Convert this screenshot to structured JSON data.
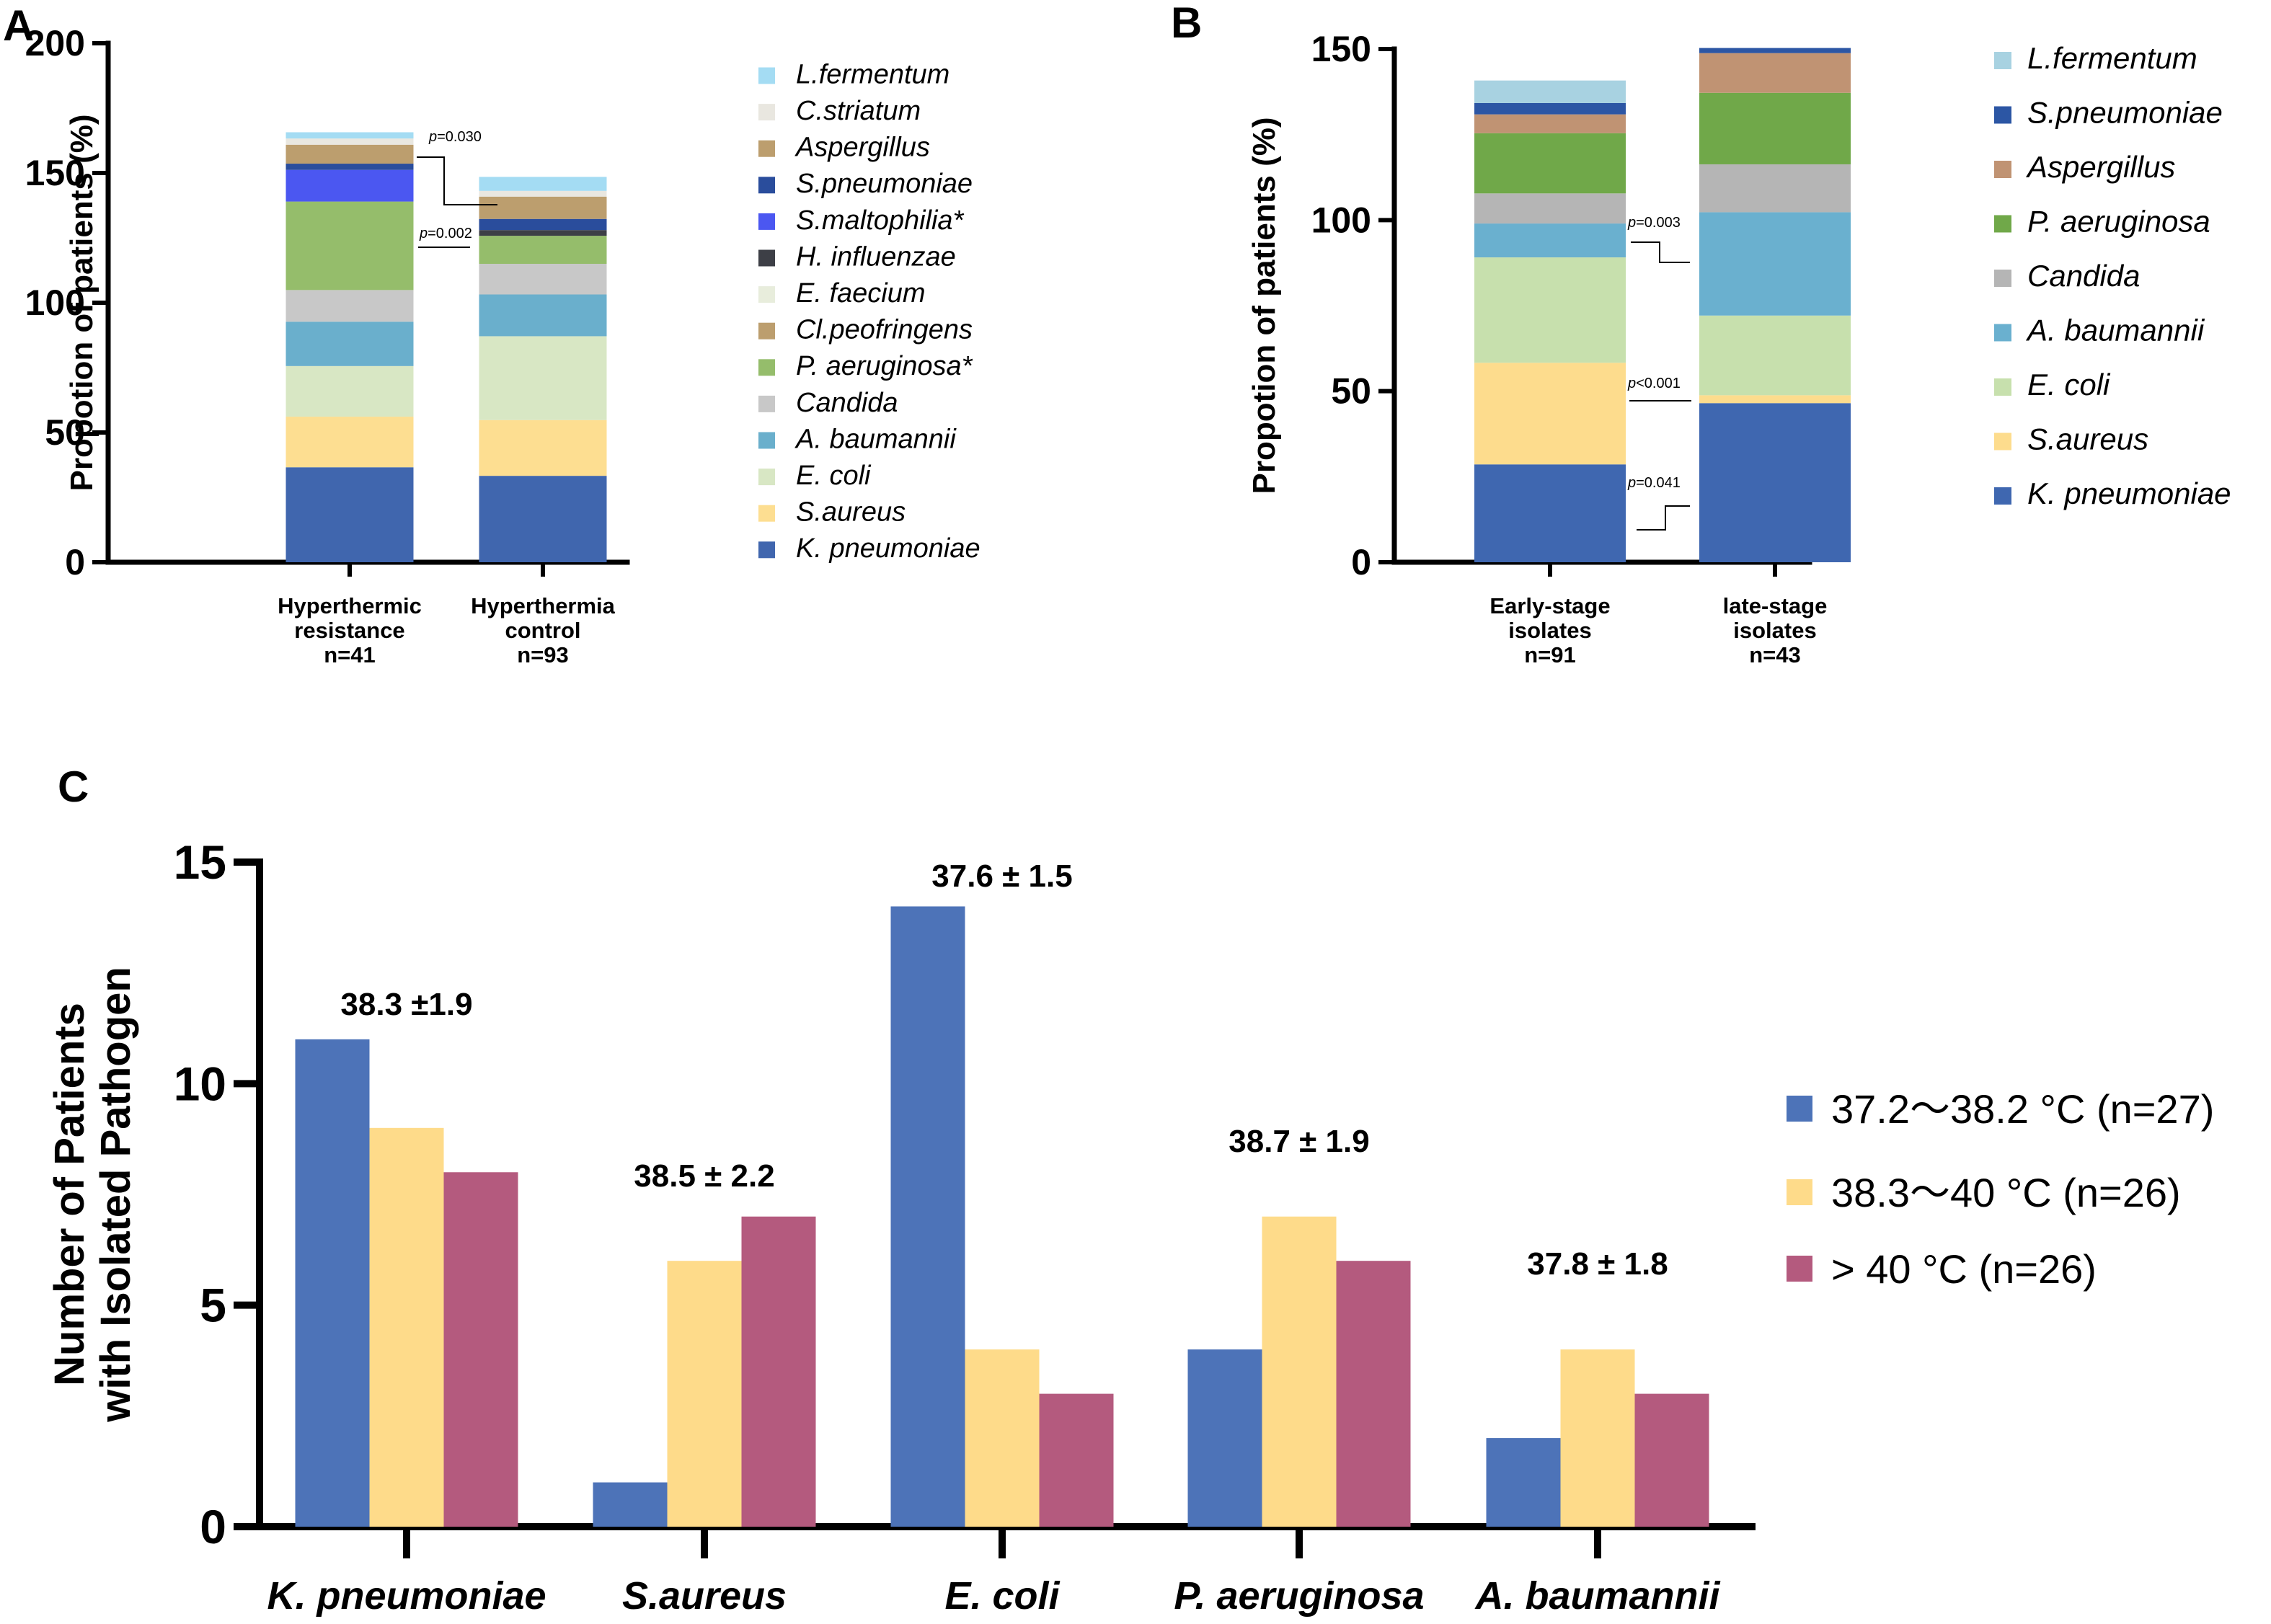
{
  "chart_data": [
    {
      "panel": "A",
      "type": "stacked bar",
      "ylabel": "Propotion of patients (%)",
      "ylim": [
        0,
        200
      ],
      "yticks": [
        0,
        50,
        100,
        150,
        200
      ],
      "categories": [
        [
          "Hyperthermic",
          "resistance",
          "n=41"
        ],
        [
          "Hyperthermia",
          "control",
          "n=93"
        ]
      ],
      "legend": [
        "L.fermentum",
        "C.striatum",
        "Aspergillus",
        "S.pneumoniae",
        "S.maltophilia*",
        "H. influenzae",
        "E. faecium",
        "Cl.peofringens",
        "P. aeruginosa*",
        "Candida",
        "A. baumannii",
        "E. coli",
        "S.aureus",
        "K. pneumoniae"
      ],
      "series": [
        {
          "name": "K. pneumoniae",
          "color": "#4066ae",
          "values": [
            36.6,
            33.3
          ]
        },
        {
          "name": "S.aureus",
          "color": "#fdde91",
          "values": [
            19.5,
            21.5
          ]
        },
        {
          "name": "E. coli",
          "color": "#d8e7c4",
          "values": [
            19.5,
            32.3
          ]
        },
        {
          "name": "A. baumannii",
          "color": "#6aafcc",
          "values": [
            17.1,
            16.1
          ]
        },
        {
          "name": "Candida",
          "color": "#c8c8c8",
          "values": [
            12.2,
            11.8
          ]
        },
        {
          "name": "P. aeruginosa*",
          "color": "#95bd6b",
          "values": [
            34.1,
            10.8
          ]
        },
        {
          "name": "Cl.peofringens",
          "color": "#bc9e6e",
          "values": [
            0,
            0
          ]
        },
        {
          "name": "E. faecium",
          "color": "#e8eddc",
          "values": [
            0,
            0
          ]
        },
        {
          "name": "H. influenzae",
          "color": "#3d3f46",
          "values": [
            0,
            2.2
          ]
        },
        {
          "name": "S.maltophilia*",
          "color": "#4b57f1",
          "values": [
            12.2,
            0
          ]
        },
        {
          "name": "S.pneumoniae",
          "color": "#2a4d9c",
          "values": [
            2.4,
            4.3
          ]
        },
        {
          "name": "Aspergillus",
          "color": "#bc9e6e",
          "values": [
            7.3,
            8.6
          ]
        },
        {
          "name": "C.striatum",
          "color": "#e9e7e0",
          "values": [
            2.4,
            2.2
          ]
        },
        {
          "name": "L.fermentum",
          "color": "#a4dcf3",
          "values": [
            2.4,
            5.4
          ]
        }
      ],
      "annotations": [
        "p=0.030",
        "p=0.002"
      ]
    },
    {
      "panel": "B",
      "type": "stacked bar",
      "ylabel": "Propotion of patients (%)",
      "ylim": [
        0,
        150
      ],
      "yticks": [
        0,
        50,
        100,
        150
      ],
      "categories": [
        [
          "Early-stage",
          "isolates",
          "n=91"
        ],
        [
          "late-stage",
          "isolates",
          "n=43"
        ]
      ],
      "legend": [
        "L.fermentum",
        "S.pneumoniae",
        "Aspergillus",
        "P. aeruginosa",
        "Candida",
        "A. baumannii",
        "E. coli",
        "S.aureus",
        "K. pneumoniae"
      ],
      "series": [
        {
          "name": "K. pneumoniae",
          "color": "#3f67b0",
          "values": [
            28.6,
            46.5
          ]
        },
        {
          "name": "S.aureus",
          "color": "#fddc8d",
          "values": [
            29.7,
            2.3
          ]
        },
        {
          "name": "E. coli",
          "color": "#c7e0ad",
          "values": [
            30.8,
            23.3
          ]
        },
        {
          "name": "A. baumannii",
          "color": "#6ab0cf",
          "values": [
            9.9,
            30.2
          ]
        },
        {
          "name": "Candida",
          "color": "#b5b5b5",
          "values": [
            8.8,
            14.0
          ]
        },
        {
          "name": "P. aeruginosa",
          "color": "#70a849",
          "values": [
            17.6,
            20.9
          ]
        },
        {
          "name": "Aspergillus",
          "color": "#c09373",
          "values": [
            5.5,
            11.6
          ]
        },
        {
          "name": "S.pneumoniae",
          "color": "#2c56a4",
          "values": [
            3.3,
            1.5
          ]
        },
        {
          "name": "L.fermentum",
          "color": "#a8d2e1",
          "values": [
            6.6,
            0
          ]
        }
      ],
      "annotations": [
        "p=0.003",
        "p<0.001",
        "p=0.041"
      ]
    },
    {
      "panel": "C",
      "type": "bar",
      "ylabel_lines": [
        "Number of Patients",
        "with Isolated Pathogen"
      ],
      "ylim": [
        0,
        15
      ],
      "yticks": [
        0,
        5,
        10,
        15
      ],
      "categories": [
        "K. pneumoniae",
        "S.aureus",
        "E. coli",
        "P. aeruginosa",
        "A. baumannii"
      ],
      "series": [
        {
          "name": "37.2～38.2 °C  (n=27)",
          "color": "#4d73b8",
          "values": [
            11,
            1,
            14,
            4,
            2
          ]
        },
        {
          "name": "38.3～40 °C  (n=26)",
          "color": "#fedb8a",
          "values": [
            9,
            6,
            4,
            7,
            4
          ]
        },
        {
          "name": "> 40 °C  (n=26)",
          "color": "#b45a7e",
          "values": [
            8,
            7,
            3,
            6,
            3
          ]
        }
      ],
      "annotations": [
        "38.3 ±1.9",
        "38.5 ± 2.2",
        "37.6 ± 1.5",
        "38.7 ± 1.9",
        "37.8 ± 1.8"
      ]
    }
  ],
  "panel_labels": [
    "A",
    "B",
    "C"
  ]
}
